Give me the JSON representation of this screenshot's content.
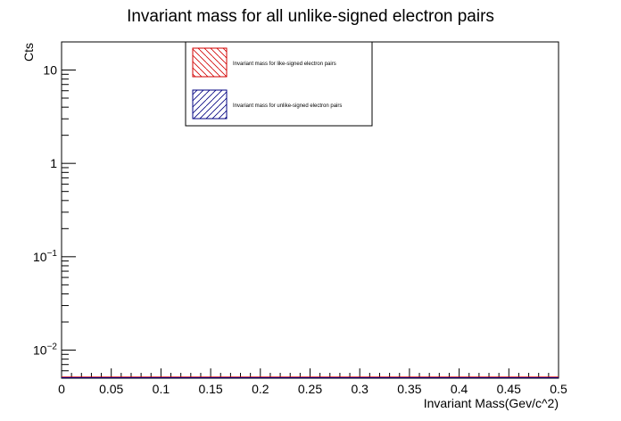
{
  "chart_data": {
    "type": "bar",
    "title": "Invariant mass for all unlike-signed electron pairs",
    "xlabel": "Invariant Mass(Gev/c^2)",
    "ylabel": "Cts",
    "xlim": [
      0,
      0.5
    ],
    "ylim": [
      0.005,
      20
    ],
    "yscale": "log",
    "grid": false,
    "legend_position": "top-center",
    "x_ticks": [
      "0",
      "0.05",
      "0.1",
      "0.15",
      "0.2",
      "0.25",
      "0.3",
      "0.35",
      "0.4",
      "0.45",
      "0.5"
    ],
    "x_tick_values": [
      0,
      0.05,
      0.1,
      0.15,
      0.2,
      0.25,
      0.3,
      0.35,
      0.4,
      0.45,
      0.5
    ],
    "y_ticks": [
      {
        "value": 0.01,
        "base": "10",
        "exp": "−2"
      },
      {
        "value": 0.1,
        "base": "10",
        "exp": "−1"
      },
      {
        "value": 1,
        "base": "1",
        "exp": ""
      },
      {
        "value": 10,
        "base": "10",
        "exp": ""
      }
    ],
    "series": [
      {
        "name": "Invariant mass for like-signed electron pairs",
        "color": "#d20000",
        "hatch": "backslash",
        "values": []
      },
      {
        "name": "Invariant mass for unlike-signed electron pairs",
        "color": "#000080",
        "hatch": "slash",
        "values": []
      }
    ]
  }
}
